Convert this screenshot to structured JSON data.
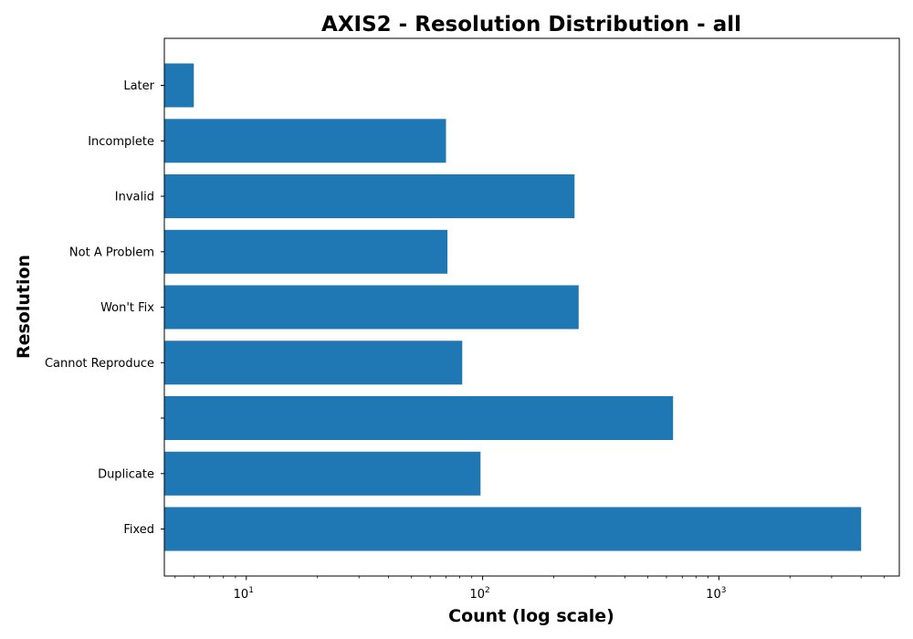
{
  "chart_data": {
    "type": "bar",
    "orientation": "horizontal",
    "title": "AXIS2 - Resolution Distribution - all",
    "xlabel": "Count (log scale)",
    "ylabel": "Resolution",
    "xscale": "log",
    "xlim": [
      4.5,
      5800
    ],
    "x_ticks": [
      {
        "value": 10,
        "base": "10",
        "exp": "1"
      },
      {
        "value": 100,
        "base": "10",
        "exp": "2"
      },
      {
        "value": 1000,
        "base": "10",
        "exp": "3"
      }
    ],
    "categories": [
      "Fixed",
      "Duplicate",
      "",
      "Cannot Reproduce",
      "Won't Fix",
      "Not A Problem",
      "Invalid",
      "Incomplete",
      "Later"
    ],
    "values": [
      4000,
      98,
      640,
      82,
      255,
      71,
      245,
      70,
      6
    ],
    "bar_color": "#1f77b4",
    "grid": false,
    "legend": "none"
  }
}
